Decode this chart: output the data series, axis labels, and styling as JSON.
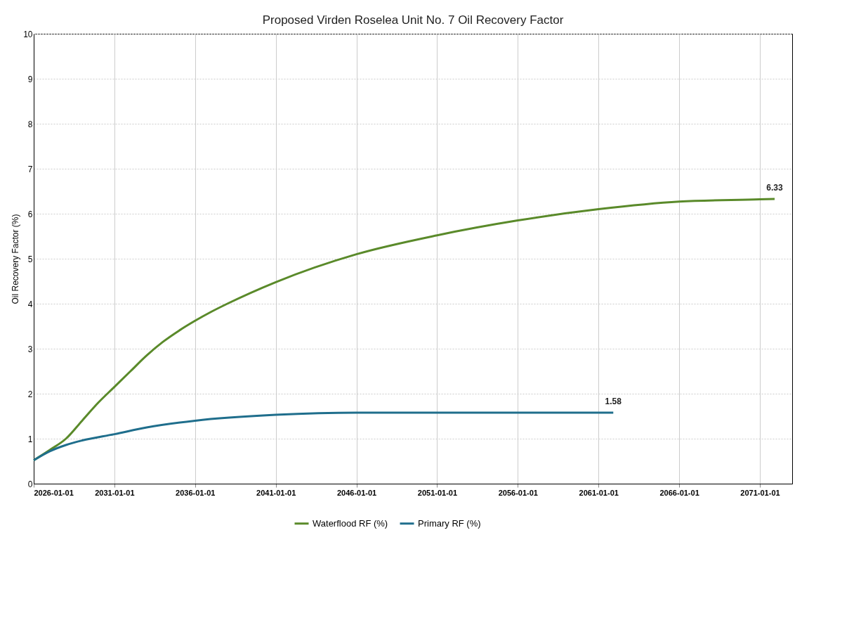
{
  "chart_data": {
    "type": "line",
    "title": "Proposed Virden Roselea Unit No. 7 Oil Recovery Factor",
    "ylabel": "Oil Recovery Factor (%)",
    "xlim": [
      "2026-01-01",
      "2073-01-01"
    ],
    "xticks": [
      "2026-01-01",
      "2031-01-01",
      "2036-01-01",
      "2041-01-01",
      "2046-01-01",
      "2051-01-01",
      "2056-01-01",
      "2061-01-01",
      "2066-01-01",
      "2071-01-01"
    ],
    "ylim": [
      0,
      10
    ],
    "yticks": [
      0,
      1,
      2,
      3,
      4,
      5,
      6,
      7,
      8,
      9,
      10
    ],
    "grid": true,
    "legend": "bottom",
    "marker": "none",
    "line_style": "solid",
    "series": [
      {
        "name": "Waterflood RF (%)",
        "color": "#5a8a2a",
        "x": [
          "2026-01-01",
          "2027-01-01",
          "2028-01-01",
          "2029-01-01",
          "2030-01-01",
          "2031-01-01",
          "2032-01-01",
          "2033-01-01",
          "2034-01-01",
          "2035-01-01",
          "2036-01-01",
          "2037-01-01",
          "2038-01-01",
          "2041-01-01",
          "2046-01-01",
          "2051-01-01",
          "2056-01-01",
          "2061-01-01",
          "2066-01-01",
          "2071-01-01",
          "2071-12-01"
        ],
        "values": [
          0.52,
          0.75,
          1.0,
          1.4,
          1.8,
          2.15,
          2.5,
          2.85,
          3.15,
          3.4,
          3.62,
          3.82,
          4.0,
          4.48,
          5.1,
          5.52,
          5.85,
          6.1,
          6.27,
          6.32,
          6.33
        ],
        "value_labels": [
          null,
          null,
          null,
          null,
          null,
          null,
          null,
          null,
          null,
          null,
          null,
          null,
          null,
          null,
          null,
          null,
          null,
          null,
          null,
          null,
          "6.33"
        ]
      },
      {
        "name": "Primary RF (%)",
        "color": "#1f6e8c",
        "x": [
          "2026-01-01",
          "2027-01-01",
          "2028-01-01",
          "2029-01-01",
          "2031-01-01",
          "2033-01-01",
          "2036-01-01",
          "2041-01-01",
          "2046-01-01",
          "2051-01-01",
          "2056-01-01",
          "2061-12-01"
        ],
        "values": [
          0.52,
          0.72,
          0.86,
          0.96,
          1.1,
          1.25,
          1.4,
          1.53,
          1.58,
          1.58,
          1.58,
          1.58
        ],
        "value_labels": [
          null,
          null,
          null,
          null,
          null,
          null,
          null,
          null,
          null,
          null,
          null,
          "1.58"
        ]
      }
    ]
  }
}
